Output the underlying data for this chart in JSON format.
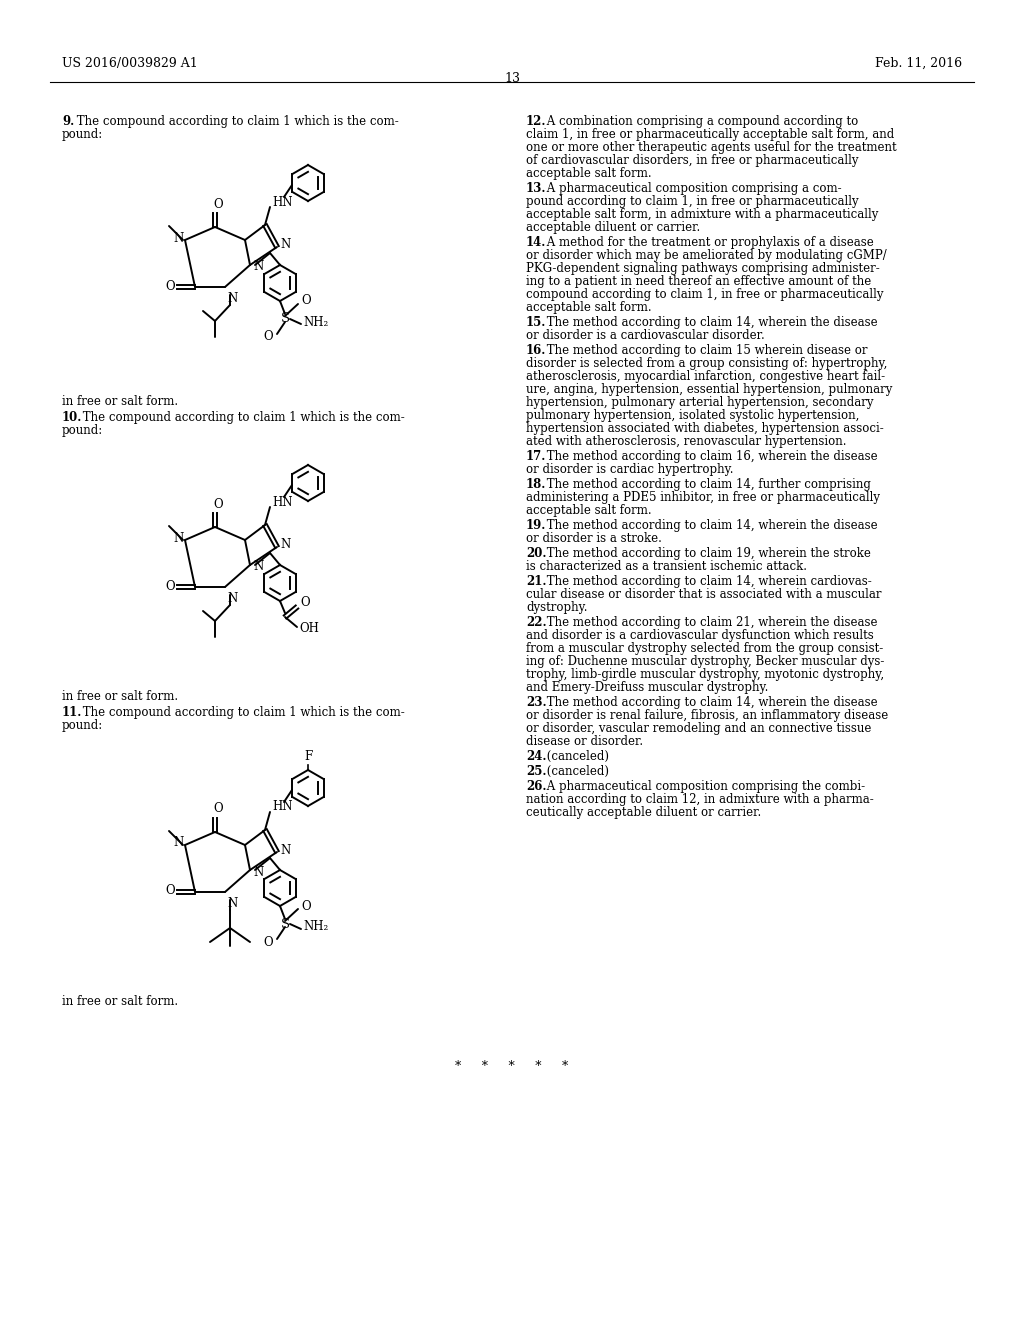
{
  "page_header_left": "US 2016/0039829 A1",
  "page_header_right": "Feb. 11, 2016",
  "page_number": "13",
  "background_color": "#ffffff",
  "text_color": "#000000",
  "footer": "*   *   *   *   *"
}
